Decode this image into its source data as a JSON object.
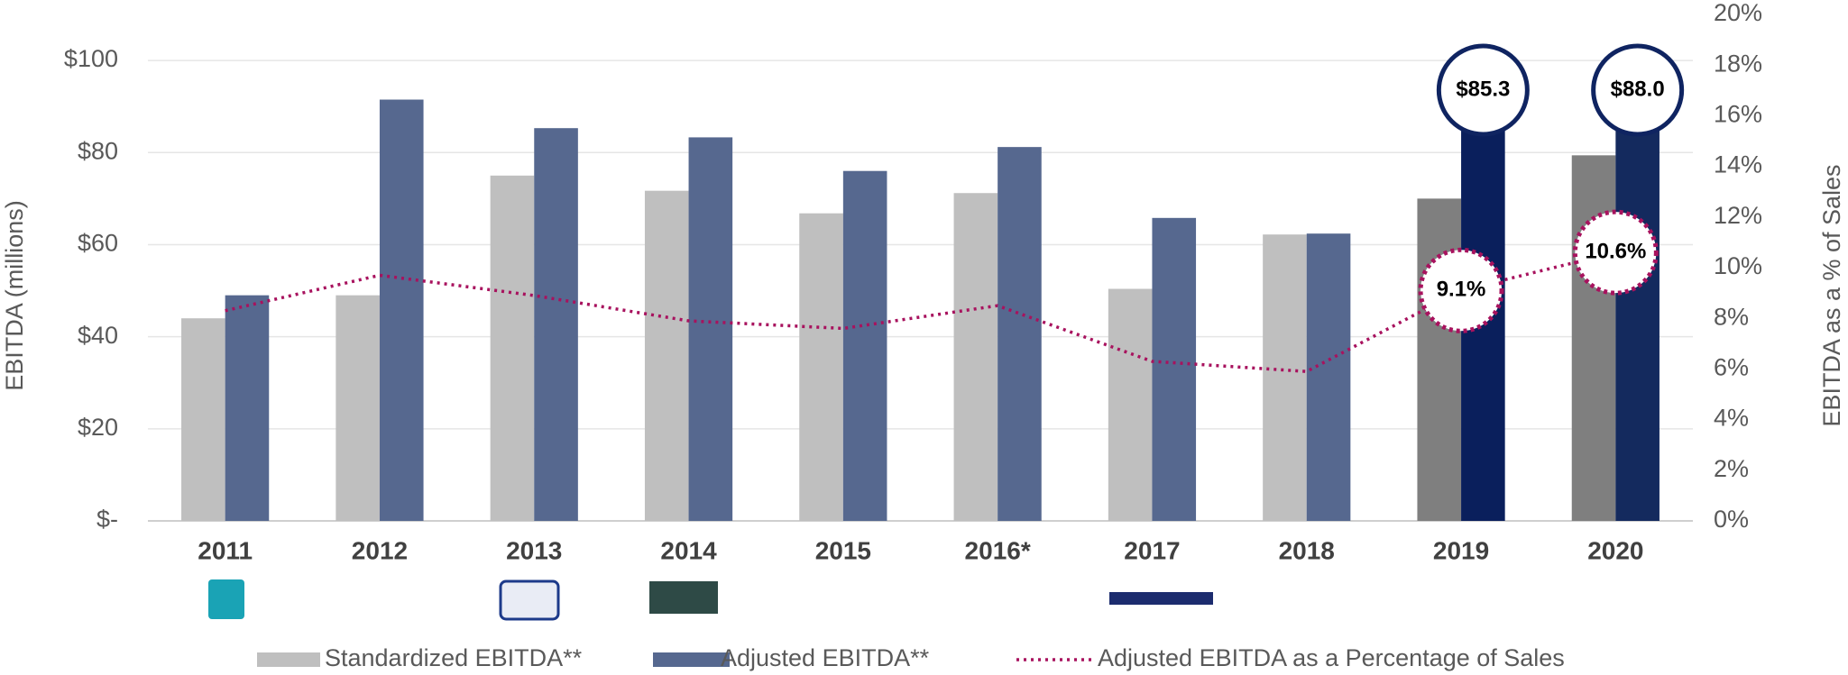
{
  "chart_data": {
    "type": "bar",
    "y_axis_label": "EBITDA (millions)",
    "y2_axis_label": "EBITDA as a % of Sales",
    "categories": [
      "2011",
      "2012",
      "2013",
      "2014",
      "2015",
      "2016*",
      "2017",
      "2018",
      "2019",
      "2020"
    ],
    "series": [
      {
        "name": "Standardized EBITDA**",
        "type": "bar",
        "color": "#bfbfbf",
        "colors": [
          "#bfbfbf",
          "#bfbfbf",
          "#bfbfbf",
          "#bfbfbf",
          "#bfbfbf",
          "#bfbfbf",
          "#bfbfbf",
          "#bfbfbf",
          "#7f7f7f",
          "#7f7f7f"
        ],
        "values": [
          44,
          49,
          75,
          71.7,
          66.8,
          71.2,
          50.4,
          62.2,
          70,
          79.4
        ]
      },
      {
        "name": "Adjusted EBITDA**",
        "type": "bar",
        "color": "#56688f",
        "colors": [
          "#56688f",
          "#56688f",
          "#56688f",
          "#56688f",
          "#56688f",
          "#56688f",
          "#56688f",
          "#56688f",
          "#0a1f5c",
          "#142a5e"
        ],
        "values": [
          49,
          91.5,
          85.3,
          83.3,
          76,
          81.2,
          65.8,
          62.4,
          85.3,
          88.0
        ],
        "value_labels": [
          null,
          null,
          null,
          null,
          null,
          null,
          null,
          null,
          "$85.3",
          "$88.0"
        ]
      },
      {
        "name": "Adjusted EBITDA as a Percentage of Sales",
        "type": "line",
        "axis": "y2",
        "color": "#a8125e",
        "values": [
          8.3,
          9.7,
          8.9,
          7.9,
          7.6,
          8.5,
          6.3,
          5.9,
          9.1,
          10.6
        ],
        "value_labels": [
          null,
          null,
          null,
          null,
          null,
          null,
          null,
          null,
          "9.1%",
          "10.6%"
        ]
      }
    ],
    "ylim": [
      0,
      110
    ],
    "yticks": [
      {
        "value": 0,
        "label": "$-"
      },
      {
        "value": 20,
        "label": "$20"
      },
      {
        "value": 40,
        "label": "$40"
      },
      {
        "value": 60,
        "label": "$60"
      },
      {
        "value": 80,
        "label": "$80"
      },
      {
        "value": 100,
        "label": "$100"
      }
    ],
    "y2lim": [
      0,
      20
    ],
    "y2ticks": [
      {
        "value": 0,
        "label": "0%"
      },
      {
        "value": 2,
        "label": "2%"
      },
      {
        "value": 4,
        "label": "4%"
      },
      {
        "value": 6,
        "label": "6%"
      },
      {
        "value": 8,
        "label": "8%"
      },
      {
        "value": 10,
        "label": "10%"
      },
      {
        "value": 12,
        "label": "12%"
      },
      {
        "value": 14,
        "label": "14%"
      },
      {
        "value": 16,
        "label": "16%"
      },
      {
        "value": 18,
        "label": "18%"
      },
      {
        "value": 20,
        "label": "20%"
      }
    ],
    "grid": true
  }
}
